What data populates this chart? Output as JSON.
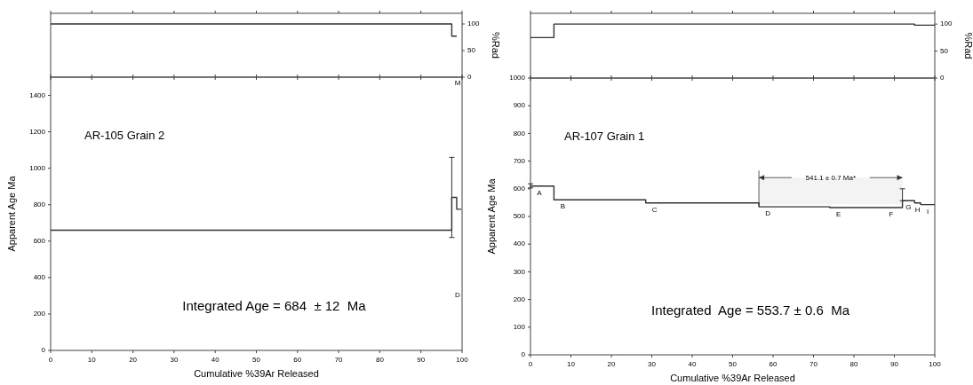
{
  "chart_data": [
    {
      "type": "step",
      "ylabel": "%Rad",
      "x": [
        0,
        97.5,
        98.7
      ],
      "xlim": [
        0,
        100
      ],
      "xticks": [
        0,
        10,
        20,
        30,
        40,
        50,
        60,
        70,
        80,
        90,
        100
      ],
      "ylim": [
        0,
        120
      ],
      "yticks": [
        0,
        50,
        100
      ],
      "tick_labels": "y",
      "series": [
        {
          "color": "#333333",
          "values": [
            100,
            77,
            77
          ]
        }
      ]
    },
    {
      "type": "step",
      "title": "AR-105 Grain 2",
      "xlabel": "Cumulative %39Ar Released",
      "ylabel": "Apparent Age Ma",
      "x": [
        0,
        97.5,
        98.7,
        99.8
      ],
      "xlim": [
        0,
        100
      ],
      "xticks": [
        0,
        10,
        20,
        30,
        40,
        50,
        60,
        70,
        80,
        90,
        100
      ],
      "ylim": [
        0,
        1500
      ],
      "yticks": [
        0,
        200,
        400,
        600,
        800,
        1000,
        1200,
        1400
      ],
      "series": [
        {
          "color": "#333333",
          "values": [
            660,
            840,
            775,
            775
          ],
          "errors": [
            null,
            [
              620,
              1060
            ],
            null,
            null
          ]
        }
      ],
      "annotations": [
        "Integrated Age = 684  ± 12  Ma",
        "M",
        "D"
      ]
    },
    {
      "type": "step",
      "ylabel": "%Rad",
      "x": [
        0,
        5.8,
        95,
        100
      ],
      "xlim": [
        0,
        100
      ],
      "xticks": [
        0,
        10,
        20,
        30,
        40,
        50,
        60,
        70,
        80,
        90,
        100
      ],
      "ylim": [
        0,
        120
      ],
      "yticks": [
        0,
        50,
        100
      ],
      "tick_labels": "y",
      "series": [
        {
          "color": "#333333",
          "values": [
            75,
            100,
            98,
            98
          ]
        }
      ]
    },
    {
      "type": "step",
      "title": "AR-107 Grain 1",
      "xlabel": "Cumulative %39Ar Released",
      "ylabel": "Apparent Age Ma",
      "x": [
        0,
        5.8,
        28.5,
        56.5,
        74,
        87,
        92,
        95,
        96.5,
        100
      ],
      "xlim": [
        0,
        100
      ],
      "xticks": [
        0,
        10,
        20,
        30,
        40,
        50,
        60,
        70,
        80,
        90,
        100
      ],
      "ylim": [
        0,
        1000
      ],
      "yticks": [
        0,
        100,
        200,
        300,
        400,
        500,
        600,
        700,
        800,
        900,
        1000
      ],
      "series": [
        {
          "color": "#333333",
          "values": [
            610,
            560,
            549,
            535,
            532,
            532,
            557,
            549,
            543,
            543
          ],
          "errors": [
            [
              603,
              618
            ],
            null,
            null,
            null,
            null,
            null,
            [
              557,
              600
            ],
            null,
            null,
            null
          ],
          "value_labels": [
            "A",
            "B",
            "C",
            "D",
            "E",
            "F",
            "G",
            "H",
            "I",
            null
          ]
        }
      ],
      "bands": [
        {
          "axis": "x",
          "from": 56.5,
          "to": 92,
          "label": "541.1 ± 0.7 Ma*"
        }
      ],
      "annotations": [
        "Integrated  Age = 553.7 ± 0.6  Ma"
      ]
    }
  ]
}
